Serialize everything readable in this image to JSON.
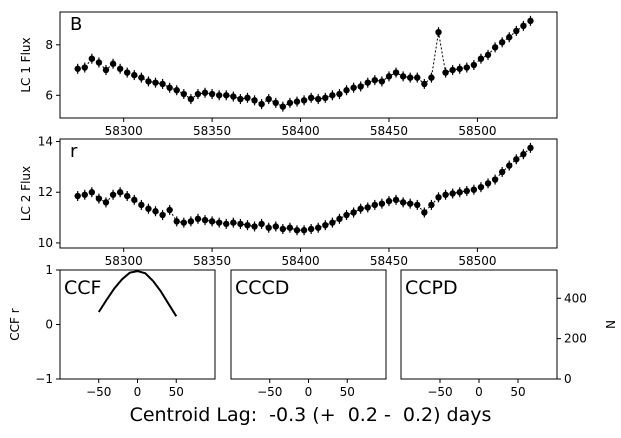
{
  "figure": {
    "xlabel": "Centroid Lag:  -0.3 (+  0.2 -  0.2) days"
  },
  "chart_data": [
    {
      "type": "scatter",
      "panel_label": "B",
      "ylabel": "LC 1 Flux",
      "xlim": [
        58264,
        58545
      ],
      "ylim": [
        5.1,
        9.3
      ],
      "x_ticks": [
        58300,
        58350,
        58400,
        58450,
        58500
      ],
      "y_ticks": [
        6,
        8
      ],
      "series": [
        {
          "marker": "circle",
          "color": "#000000",
          "errorbars": true,
          "dotted_line": true,
          "x": [
            58274,
            58278,
            58282,
            58286,
            58290,
            58294,
            58298,
            58302,
            58306,
            58310,
            58314,
            58318,
            58322,
            58326,
            58330,
            58334,
            58338,
            58342,
            58346,
            58350,
            58354,
            58358,
            58362,
            58366,
            58370,
            58374,
            58378,
            58382,
            58386,
            58390,
            58394,
            58398,
            58402,
            58406,
            58410,
            58414,
            58418,
            58422,
            58426,
            58430,
            58434,
            58438,
            58442,
            58446,
            58450,
            58454,
            58458,
            58462,
            58466,
            58470,
            58474,
            58478,
            58482,
            58486,
            58490,
            58494,
            58498,
            58502,
            58506,
            58510,
            58514,
            58518,
            58522,
            58526,
            58530
          ],
          "y": [
            7.05,
            7.1,
            7.45,
            7.3,
            7.0,
            7.25,
            7.05,
            6.9,
            6.8,
            6.7,
            6.55,
            6.5,
            6.45,
            6.3,
            6.2,
            6.05,
            5.85,
            6.05,
            6.1,
            6.05,
            6.0,
            6.0,
            5.95,
            5.85,
            5.9,
            5.8,
            5.65,
            5.85,
            5.7,
            5.55,
            5.7,
            5.75,
            5.8,
            5.9,
            5.85,
            5.9,
            6.0,
            6.05,
            6.2,
            6.3,
            6.35,
            6.5,
            6.6,
            6.55,
            6.75,
            6.9,
            6.75,
            6.7,
            6.7,
            6.45,
            6.7,
            8.5,
            6.9,
            7.0,
            7.05,
            7.1,
            7.2,
            7.45,
            7.6,
            7.9,
            8.1,
            8.3,
            8.55,
            8.75,
            8.95
          ]
        }
      ]
    },
    {
      "type": "scatter",
      "panel_label": "r",
      "ylabel": "LC 2 Flux",
      "xlim": [
        58264,
        58545
      ],
      "ylim": [
        9.8,
        14.1
      ],
      "x_ticks": [
        58300,
        58350,
        58400,
        58450,
        58500
      ],
      "y_ticks": [
        10,
        12,
        14
      ],
      "series": [
        {
          "marker": "circle",
          "color": "#000000",
          "errorbars": true,
          "dotted_line": true,
          "x": [
            58274,
            58278,
            58282,
            58286,
            58290,
            58294,
            58298,
            58302,
            58306,
            58310,
            58314,
            58318,
            58322,
            58326,
            58330,
            58334,
            58338,
            58342,
            58346,
            58350,
            58354,
            58358,
            58362,
            58366,
            58370,
            58374,
            58378,
            58382,
            58386,
            58390,
            58394,
            58398,
            58402,
            58406,
            58410,
            58414,
            58418,
            58422,
            58426,
            58430,
            58434,
            58438,
            58442,
            58446,
            58450,
            58454,
            58458,
            58462,
            58466,
            58470,
            58474,
            58478,
            58482,
            58486,
            58490,
            58494,
            58498,
            58502,
            58506,
            58510,
            58514,
            58518,
            58522,
            58526,
            58530
          ],
          "y": [
            11.85,
            11.9,
            12.0,
            11.75,
            11.6,
            11.9,
            12.0,
            11.85,
            11.7,
            11.5,
            11.35,
            11.25,
            11.1,
            11.3,
            10.85,
            10.8,
            10.85,
            10.95,
            10.9,
            10.85,
            10.8,
            10.75,
            10.8,
            10.75,
            10.7,
            10.65,
            10.75,
            10.6,
            10.65,
            10.55,
            10.6,
            10.5,
            10.5,
            10.55,
            10.6,
            10.7,
            10.8,
            10.95,
            11.1,
            11.2,
            11.35,
            11.4,
            11.5,
            11.55,
            11.65,
            11.7,
            11.6,
            11.55,
            11.5,
            11.2,
            11.5,
            11.8,
            11.9,
            11.95,
            12.0,
            12.05,
            12.1,
            12.2,
            12.35,
            12.5,
            12.8,
            13.05,
            13.3,
            13.5,
            13.75
          ]
        }
      ]
    },
    {
      "type": "line",
      "panel_label": "CCF",
      "ylabel": "CCF r",
      "xlim": [
        -100,
        100
      ],
      "ylim": [
        -1,
        1
      ],
      "x_ticks": [
        -50,
        0,
        50
      ],
      "y_ticks": [
        -1,
        0,
        1
      ],
      "series": [
        {
          "color": "#000000",
          "x": [
            -50,
            -40,
            -30,
            -20,
            -10,
            0,
            10,
            20,
            30,
            40,
            50
          ],
          "y": [
            0.23,
            0.45,
            0.66,
            0.83,
            0.95,
            0.98,
            0.94,
            0.8,
            0.61,
            0.38,
            0.15
          ]
        }
      ]
    },
    {
      "type": "histogram",
      "panel_label": "CCCD",
      "xlim": [
        -100,
        100
      ],
      "x_ticks": [
        -50,
        0,
        50
      ],
      "series": []
    },
    {
      "type": "histogram",
      "panel_label": "CCPD",
      "ylabel": "N",
      "xlim": [
        -100,
        100
      ],
      "ylim": [
        0,
        540
      ],
      "x_ticks": [
        -50,
        0,
        50
      ],
      "y_ticks": [
        0,
        200,
        400
      ],
      "series": []
    }
  ]
}
